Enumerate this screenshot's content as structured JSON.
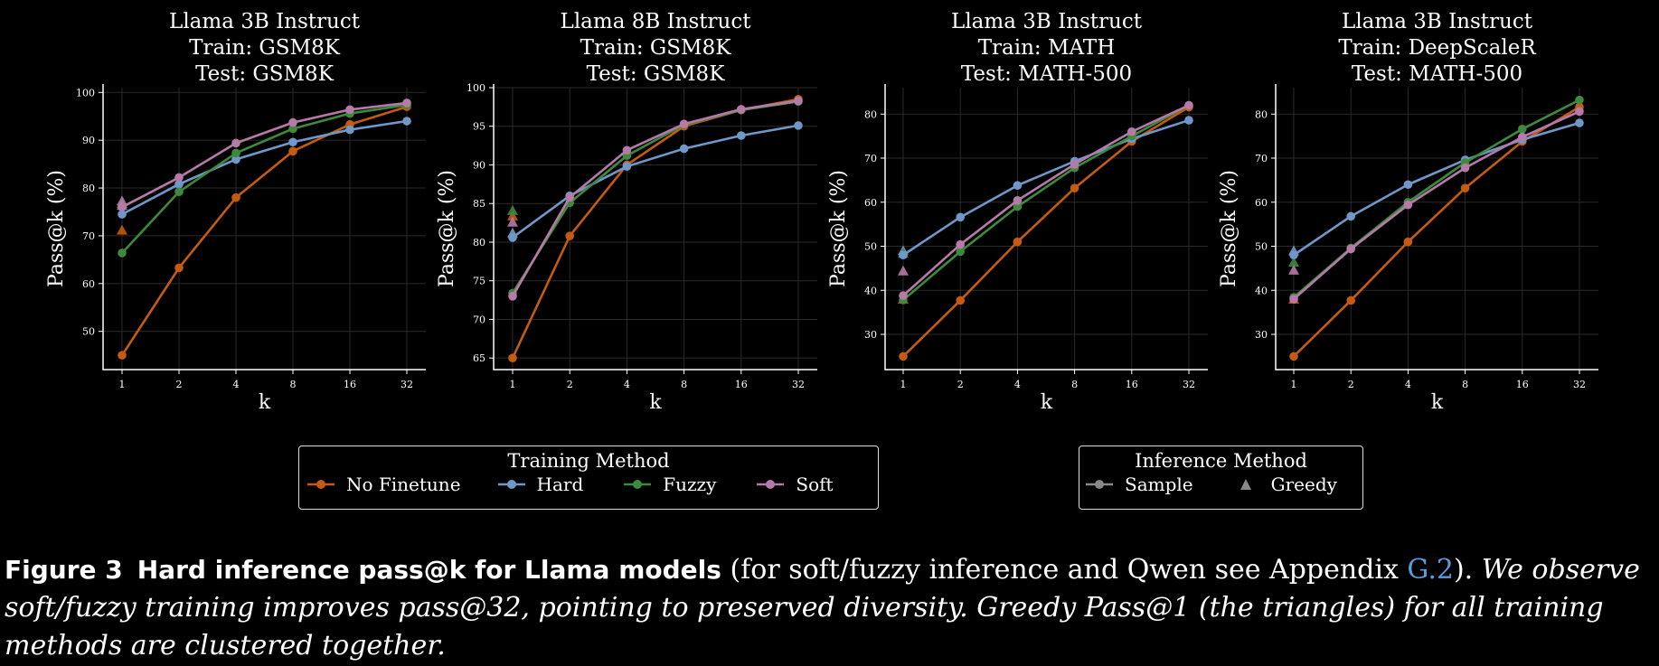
{
  "colors": {
    "no_finetune": "#c55a11",
    "hard": "#6f98c8",
    "fuzzy": "#3c8a3c",
    "soft": "#b57aa8",
    "inference_marker": "#888888",
    "grid": "#2a2a2a",
    "axis": "#ffffff",
    "link": "#5a9be0"
  },
  "chart_data": [
    {
      "type": "line",
      "title_lines": [
        "Llama 3B Instruct",
        "Train: GSM8K",
        "Test: GSM8K"
      ],
      "xlabel": "k",
      "ylabel": "Pass@k (%)",
      "x": [
        "1",
        "2",
        "4",
        "8",
        "16",
        "32"
      ],
      "ylim": [
        42,
        101
      ],
      "yticks": [
        50,
        60,
        70,
        80,
        90,
        100
      ],
      "series": [
        {
          "name": "No Finetune",
          "key": "no_finetune",
          "values": [
            45,
            63.3,
            78,
            87.7,
            93.3,
            97
          ]
        },
        {
          "name": "Hard",
          "key": "hard",
          "values": [
            74.5,
            80.8,
            86,
            89.6,
            92.2,
            94
          ]
        },
        {
          "name": "Fuzzy",
          "key": "fuzzy",
          "values": [
            66.4,
            79.2,
            87.3,
            92.4,
            95.6,
            97.4
          ]
        },
        {
          "name": "Soft",
          "key": "soft",
          "values": [
            76,
            82.2,
            89.4,
            93.7,
            96.4,
            97.8
          ]
        }
      ],
      "greedy_pass1": [
        {
          "key": "no_finetune",
          "value": 71.2
        },
        {
          "key": "hard",
          "value": 76.4
        },
        {
          "key": "fuzzy",
          "value": 76.8
        },
        {
          "key": "soft",
          "value": 77.3
        }
      ]
    },
    {
      "type": "line",
      "title_lines": [
        "Llama 8B Instruct",
        "Train: GSM8K",
        "Test: GSM8K"
      ],
      "xlabel": "k",
      "ylabel": "Pass@k (%)",
      "x": [
        "1",
        "2",
        "4",
        "8",
        "16",
        "32"
      ],
      "ylim": [
        63.5,
        100
      ],
      "yticks": [
        65,
        70,
        75,
        80,
        85,
        90,
        95,
        100
      ],
      "series": [
        {
          "name": "No Finetune",
          "key": "no_finetune",
          "values": [
            65,
            80.8,
            90,
            95,
            97.1,
            98.5
          ]
        },
        {
          "name": "Hard",
          "key": "hard",
          "values": [
            80.6,
            86,
            89.8,
            92.1,
            93.8,
            95.1
          ]
        },
        {
          "name": "Fuzzy",
          "key": "fuzzy",
          "values": [
            73.4,
            85.1,
            91.2,
            95.2,
            97.1,
            98.2
          ]
        },
        {
          "name": "Soft",
          "key": "soft",
          "values": [
            73,
            85.8,
            91.9,
            95.3,
            97.2,
            98.3
          ]
        }
      ],
      "greedy_pass1": [
        {
          "key": "no_finetune",
          "value": 83.4
        },
        {
          "key": "hard",
          "value": 81.2
        },
        {
          "key": "fuzzy",
          "value": 84.1
        },
        {
          "key": "soft",
          "value": 82.6
        }
      ]
    },
    {
      "type": "line",
      "title_lines": [
        "Llama 3B Instruct",
        "Train: MATH",
        "Test: MATH-500"
      ],
      "xlabel": "k",
      "ylabel": "Pass@k (%)",
      "x": [
        "1",
        "2",
        "4",
        "8",
        "16",
        "32"
      ],
      "ylim": [
        22,
        86
      ],
      "yticks": [
        30,
        40,
        50,
        60,
        70,
        80
      ],
      "series": [
        {
          "name": "No Finetune",
          "key": "no_finetune",
          "values": [
            25,
            37.7,
            51,
            63.2,
            73.8,
            81.6
          ]
        },
        {
          "name": "Hard",
          "key": "hard",
          "values": [
            48,
            56.6,
            63.8,
            69.3,
            74.4,
            78.6
          ]
        },
        {
          "name": "Fuzzy",
          "key": "fuzzy",
          "values": [
            37.8,
            48.8,
            59,
            67.8,
            75,
            82
          ]
        },
        {
          "name": "Soft",
          "key": "soft",
          "values": [
            38.8,
            50.4,
            60.4,
            68.6,
            76,
            82
          ]
        }
      ],
      "greedy_pass1": [
        {
          "key": "no_finetune",
          "value": 38
        },
        {
          "key": "hard",
          "value": 49
        },
        {
          "key": "fuzzy",
          "value": 48.4
        },
        {
          "key": "soft",
          "value": 44.4
        }
      ]
    },
    {
      "type": "line",
      "title_lines": [
        "Llama 3B Instruct",
        "Train: DeepScaleR",
        "Test: MATH-500"
      ],
      "xlabel": "k",
      "ylabel": "Pass@k (%)",
      "x": [
        "1",
        "2",
        "4",
        "8",
        "16",
        "32"
      ],
      "ylim": [
        22,
        86
      ],
      "yticks": [
        30,
        40,
        50,
        60,
        70,
        80
      ],
      "series": [
        {
          "name": "No Finetune",
          "key": "no_finetune",
          "values": [
            25,
            37.7,
            51,
            63.2,
            73.8,
            81.6
          ]
        },
        {
          "name": "Hard",
          "key": "hard",
          "values": [
            48,
            56.8,
            64,
            69.6,
            74.2,
            78
          ]
        },
        {
          "name": "Fuzzy",
          "key": "fuzzy",
          "values": [
            38.4,
            49.6,
            60,
            69,
            76.6,
            83.2
          ]
        },
        {
          "name": "Soft",
          "key": "soft",
          "values": [
            38,
            49.4,
            59.4,
            67.8,
            74.8,
            80.6
          ]
        }
      ],
      "greedy_pass1": [
        {
          "key": "no_finetune",
          "value": 38
        },
        {
          "key": "hard",
          "value": 49
        },
        {
          "key": "fuzzy",
          "value": 46.4
        },
        {
          "key": "soft",
          "value": 44.6
        }
      ]
    }
  ],
  "legends": {
    "training": {
      "title": "Training Method",
      "entries": [
        {
          "label": "No Finetune",
          "key": "no_finetune"
        },
        {
          "label": "Hard",
          "key": "hard"
        },
        {
          "label": "Fuzzy",
          "key": "fuzzy"
        },
        {
          "label": "Soft",
          "key": "soft"
        }
      ]
    },
    "inference": {
      "title": "Inference Method",
      "entries": [
        {
          "label": "Sample",
          "marker": "line-circle"
        },
        {
          "label": "Greedy",
          "marker": "triangle"
        }
      ]
    }
  },
  "caption": {
    "label": "Figure 3",
    "bold_title": "Hard inference pass@k for Llama models",
    "plain_before_link": "(for soft/fuzzy inference and Qwen see Appendix ",
    "link": "G.2",
    "plain_after_link": ").",
    "italic": "We observe soft/fuzzy training improves pass@32, pointing to preserved diversity. Greedy Pass@1 (the triangles) for all training methods are clustered together."
  }
}
